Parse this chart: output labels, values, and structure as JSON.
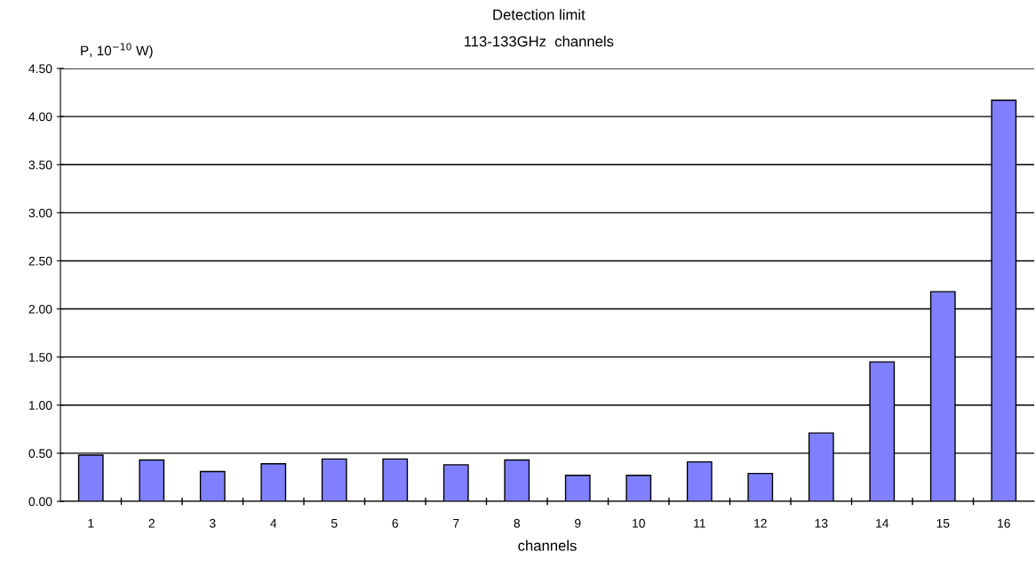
{
  "chart_data": {
    "type": "bar",
    "title": "Detection limit",
    "subtitle": "113-133GHz  channels",
    "ylabel": "P, 10$^{−10}$ W)",
    "xlabel": "channels",
    "categories": [
      "1",
      "2",
      "3",
      "4",
      "5",
      "6",
      "7",
      "8",
      "9",
      "10",
      "11",
      "12",
      "13",
      "14",
      "15",
      "16"
    ],
    "values": [
      0.48,
      0.43,
      0.31,
      0.39,
      0.44,
      0.44,
      0.38,
      0.43,
      0.27,
      0.27,
      0.41,
      0.29,
      0.71,
      1.45,
      2.18,
      4.17
    ],
    "color": "#8080ff",
    "ylim": [
      0,
      4.5
    ],
    "yticks": [
      {
        "value": 0,
        "label": "0.00"
      },
      {
        "value": 0.5,
        "label": "0.50"
      },
      {
        "value": 1,
        "label": "1.00"
      },
      {
        "value": 1.5,
        "label": "1.50"
      },
      {
        "value": 2,
        "label": "2.00"
      },
      {
        "value": 2.5,
        "label": "2.50"
      },
      {
        "value": 3,
        "label": "3.00"
      },
      {
        "value": 3.5,
        "label": "3.50"
      },
      {
        "value": 4,
        "label": "4.00"
      },
      {
        "value": 4.5,
        "label": "4.50"
      }
    ],
    "grid": "y"
  }
}
